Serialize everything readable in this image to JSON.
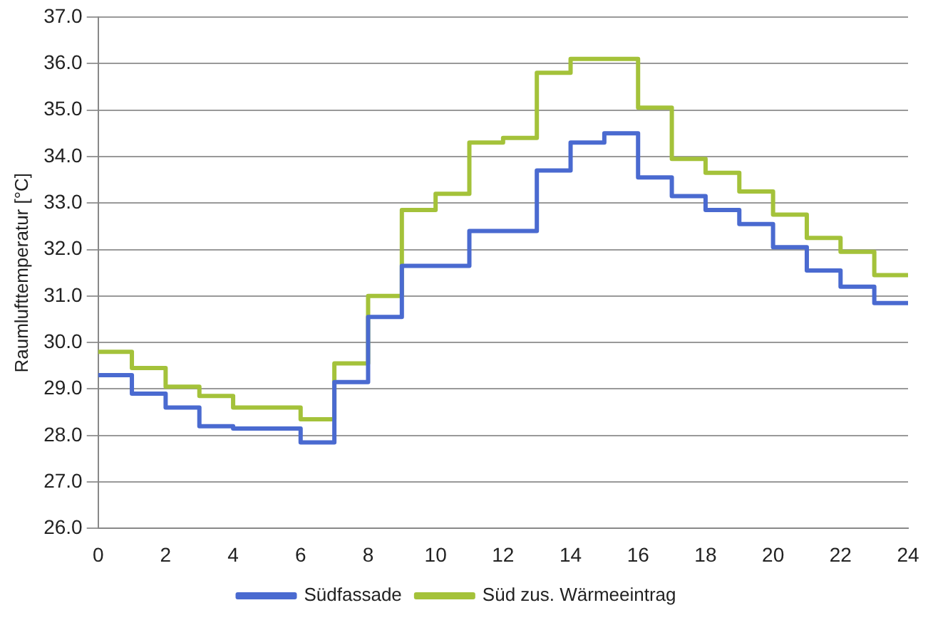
{
  "chart_data": {
    "type": "step",
    "ylabel": "Raumlufttemperatur [°C]",
    "x": [
      0,
      1,
      2,
      3,
      4,
      5,
      6,
      7,
      8,
      9,
      10,
      11,
      12,
      13,
      14,
      15,
      16,
      17,
      18,
      19,
      20,
      21,
      22,
      23,
      24
    ],
    "series": [
      {
        "name": "Südfassade",
        "color": "#4a6ad0",
        "values": [
          29.3,
          28.9,
          28.6,
          28.2,
          28.15,
          28.15,
          27.85,
          29.15,
          30.55,
          31.65,
          31.65,
          32.4,
          32.4,
          33.7,
          34.3,
          34.5,
          33.55,
          33.15,
          32.85,
          32.55,
          32.05,
          31.55,
          31.2,
          30.85,
          30.85
        ]
      },
      {
        "name": "Süd zus. Wärmeeintrag",
        "color": "#a4c23a",
        "values": [
          29.8,
          29.45,
          29.05,
          28.85,
          28.6,
          28.6,
          28.35,
          29.55,
          31.0,
          32.85,
          33.2,
          34.3,
          34.4,
          35.8,
          36.1,
          36.1,
          35.05,
          33.95,
          33.65,
          33.25,
          32.75,
          32.25,
          31.95,
          31.45,
          31.45
        ]
      }
    ],
    "xlim": [
      0,
      24
    ],
    "xticks": [
      0,
      2,
      4,
      6,
      8,
      10,
      12,
      14,
      16,
      18,
      20,
      22,
      24
    ],
    "ylim": [
      26,
      37
    ],
    "yticks": [
      {
        "value": 26,
        "label": "26.0"
      },
      {
        "value": 27,
        "label": "27.0"
      },
      {
        "value": 28,
        "label": "28.0"
      },
      {
        "value": 29,
        "label": "29.0"
      },
      {
        "value": 30,
        "label": "30.0"
      },
      {
        "value": 31,
        "label": "31.0"
      },
      {
        "value": 32,
        "label": "32.0"
      },
      {
        "value": 33,
        "label": "33.0"
      },
      {
        "value": 34,
        "label": "34.0"
      },
      {
        "value": 35,
        "label": "35.0"
      },
      {
        "value": 36,
        "label": "36.0"
      },
      {
        "value": 37,
        "label": "37.0"
      }
    ],
    "grid": "y",
    "legend": "bottom",
    "marker": "none",
    "line_style": "solid"
  }
}
